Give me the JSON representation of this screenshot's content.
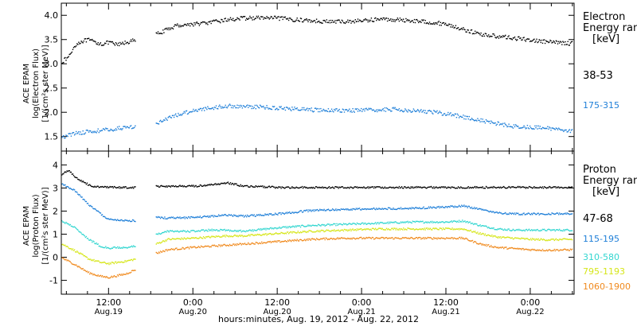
{
  "figure": {
    "xlabel": "hours:minutes, Aug. 19, 2012 - Aug. 22, 2012",
    "x_ticks": [
      {
        "t": 0.5,
        "time": "12:00",
        "date": "Aug.19"
      },
      {
        "t": 1.0,
        "time": "0:00",
        "date": "Aug.20"
      },
      {
        "t": 1.5,
        "time": "12:00",
        "date": "Aug.20"
      },
      {
        "t": 2.0,
        "time": "0:00",
        "date": "Aug.21"
      },
      {
        "t": 2.5,
        "time": "12:00",
        "date": "Aug.21"
      },
      {
        "t": 3.0,
        "time": "0:00",
        "date": "Aug.22"
      }
    ],
    "x_minor_step_days": 0.125,
    "x_range_days": [
      0.22,
      3.26
    ]
  },
  "chart_data": [
    {
      "type": "scatter",
      "panel": "electron",
      "ylabel": [
        "ACE EPAM",
        "log(Electron Flux)",
        "[1/(cm²s ster MeV)]"
      ],
      "ylim": [
        1.2,
        4.25
      ],
      "yticks": [
        "1.5",
        "2.0",
        "2.5",
        "3.0",
        "3.5",
        "4.0"
      ],
      "legend_title": [
        "Electron",
        "Energy ran",
        "[keV]"
      ],
      "x_units": "days since Aug. 19, 2012 00:00",
      "series": [
        {
          "name": "38-53",
          "color": "#000000",
          "x": [
            0.22,
            0.26,
            0.3,
            0.34,
            0.38,
            0.42,
            0.46,
            0.5,
            0.55,
            0.6,
            0.66,
            0.7,
            0.78,
            0.85,
            0.9,
            1.0,
            1.1,
            1.2,
            1.3,
            1.4,
            1.5,
            1.6,
            1.7,
            1.8,
            1.9,
            2.0,
            2.1,
            2.2,
            2.3,
            2.4,
            2.5,
            2.6,
            2.7,
            2.8,
            2.9,
            3.0,
            3.1,
            3.2,
            3.25
          ],
          "y": [
            3.05,
            3.15,
            3.4,
            3.48,
            3.5,
            3.45,
            3.42,
            3.45,
            3.4,
            3.45,
            3.5,
            null,
            3.62,
            3.72,
            3.8,
            3.83,
            3.86,
            3.92,
            3.95,
            3.96,
            3.95,
            3.92,
            3.9,
            3.88,
            3.88,
            3.9,
            3.93,
            3.92,
            3.9,
            3.87,
            3.83,
            3.72,
            3.62,
            3.58,
            3.54,
            3.5,
            3.46,
            3.44,
            3.43
          ]
        },
        {
          "name": "175-315",
          "color": "#1f7fd8",
          "x": [
            0.22,
            0.3,
            0.4,
            0.5,
            0.6,
            0.66,
            0.7,
            0.78,
            0.85,
            0.9,
            1.0,
            1.1,
            1.2,
            1.3,
            1.4,
            1.5,
            1.6,
            1.7,
            1.8,
            1.9,
            2.0,
            2.1,
            2.2,
            2.3,
            2.4,
            2.5,
            2.6,
            2.7,
            2.8,
            2.9,
            3.0,
            3.1,
            3.2,
            3.25
          ],
          "y": [
            1.5,
            1.58,
            1.62,
            1.65,
            1.7,
            1.72,
            null,
            1.78,
            1.88,
            1.95,
            2.05,
            2.1,
            2.14,
            2.13,
            2.12,
            2.1,
            2.08,
            2.06,
            2.05,
            2.05,
            2.05,
            2.06,
            2.07,
            2.05,
            2.02,
            1.98,
            1.92,
            1.84,
            1.78,
            1.72,
            1.7,
            1.68,
            1.65,
            1.63
          ]
        }
      ]
    },
    {
      "type": "scatter",
      "panel": "proton",
      "ylabel": [
        "ACE EPAM",
        "log(Proton Flux)",
        "[1/(cm²s ster MeV)]"
      ],
      "ylim": [
        -1.6,
        4.6
      ],
      "yticks": [
        "-1",
        "0",
        "1",
        "2",
        "3",
        "4"
      ],
      "legend_title": [
        "Proton",
        "Energy ran",
        "[keV]"
      ],
      "x_units": "days since Aug. 19, 2012 00:00",
      "series": [
        {
          "name": "47-68",
          "color": "#000000",
          "x": [
            0.22,
            0.26,
            0.3,
            0.34,
            0.4,
            0.5,
            0.6,
            0.66,
            0.7,
            0.78,
            0.85,
            1.0,
            1.1,
            1.2,
            1.3,
            1.5,
            1.7,
            1.9,
            2.1,
            2.3,
            2.5,
            2.7,
            2.9,
            3.0,
            3.1,
            3.25
          ],
          "y": [
            3.6,
            3.8,
            3.5,
            3.3,
            3.1,
            3.05,
            3.05,
            3.05,
            null,
            3.1,
            3.1,
            3.1,
            3.15,
            3.25,
            3.1,
            3.05,
            3.05,
            3.05,
            3.05,
            3.05,
            3.05,
            3.05,
            3.05,
            3.05,
            3.05,
            3.05
          ]
        },
        {
          "name": "115-195",
          "color": "#1f7fd8",
          "x": [
            0.22,
            0.3,
            0.38,
            0.45,
            0.5,
            0.6,
            0.66,
            0.7,
            0.78,
            0.85,
            1.0,
            1.1,
            1.2,
            1.3,
            1.5,
            1.7,
            1.9,
            2.1,
            2.3,
            2.5,
            2.6,
            2.7,
            2.8,
            2.9,
            3.0,
            3.1,
            3.25
          ],
          "y": [
            3.2,
            2.9,
            2.3,
            1.9,
            1.65,
            1.62,
            1.6,
            null,
            1.75,
            1.72,
            1.75,
            1.8,
            1.85,
            1.8,
            1.9,
            2.05,
            2.1,
            2.12,
            2.15,
            2.2,
            2.25,
            2.1,
            1.95,
            1.9,
            1.9,
            1.9,
            1.92
          ]
        },
        {
          "name": "310-580",
          "color": "#33d6d0",
          "x": [
            0.22,
            0.3,
            0.38,
            0.45,
            0.5,
            0.6,
            0.66,
            0.7,
            0.78,
            0.85,
            1.0,
            1.1,
            1.2,
            1.3,
            1.5,
            1.7,
            1.9,
            2.1,
            2.3,
            2.5,
            2.6,
            2.7,
            2.8,
            2.9,
            3.0,
            3.1,
            3.25
          ],
          "y": [
            1.6,
            1.3,
            0.8,
            0.5,
            0.42,
            0.45,
            0.5,
            null,
            1.0,
            1.15,
            1.15,
            1.2,
            1.2,
            1.15,
            1.3,
            1.4,
            1.45,
            1.5,
            1.55,
            1.55,
            1.6,
            1.4,
            1.25,
            1.2,
            1.2,
            1.2,
            1.2
          ]
        },
        {
          "name": "795-1193",
          "color": "#d6e619",
          "x": [
            0.22,
            0.3,
            0.38,
            0.45,
            0.5,
            0.6,
            0.66,
            0.7,
            0.78,
            0.85,
            1.0,
            1.1,
            1.2,
            1.3,
            1.5,
            1.7,
            1.9,
            2.1,
            2.3,
            2.5,
            2.6,
            2.7,
            2.8,
            2.9,
            3.0,
            3.1,
            3.25
          ],
          "y": [
            0.6,
            0.3,
            -0.05,
            -0.2,
            -0.25,
            -0.15,
            -0.05,
            null,
            0.6,
            0.8,
            0.85,
            0.9,
            0.95,
            0.95,
            1.05,
            1.15,
            1.2,
            1.25,
            1.25,
            1.25,
            1.25,
            1.05,
            0.9,
            0.85,
            0.8,
            0.78,
            0.8
          ]
        },
        {
          "name": "1060-1900",
          "color": "#f08a1e",
          "x": [
            0.22,
            0.3,
            0.38,
            0.45,
            0.5,
            0.6,
            0.66,
            0.7,
            0.78,
            0.85,
            1.0,
            1.1,
            1.2,
            1.3,
            1.5,
            1.7,
            1.9,
            2.1,
            2.3,
            2.5,
            2.6,
            2.7,
            2.8,
            2.9,
            3.0,
            3.1,
            3.25
          ],
          "y": [
            0.0,
            -0.3,
            -0.65,
            -0.8,
            -0.85,
            -0.7,
            -0.5,
            null,
            0.2,
            0.35,
            0.45,
            0.5,
            0.55,
            0.6,
            0.7,
            0.8,
            0.85,
            0.85,
            0.85,
            0.85,
            0.85,
            0.6,
            0.45,
            0.4,
            0.35,
            0.33,
            0.35
          ]
        }
      ]
    }
  ]
}
